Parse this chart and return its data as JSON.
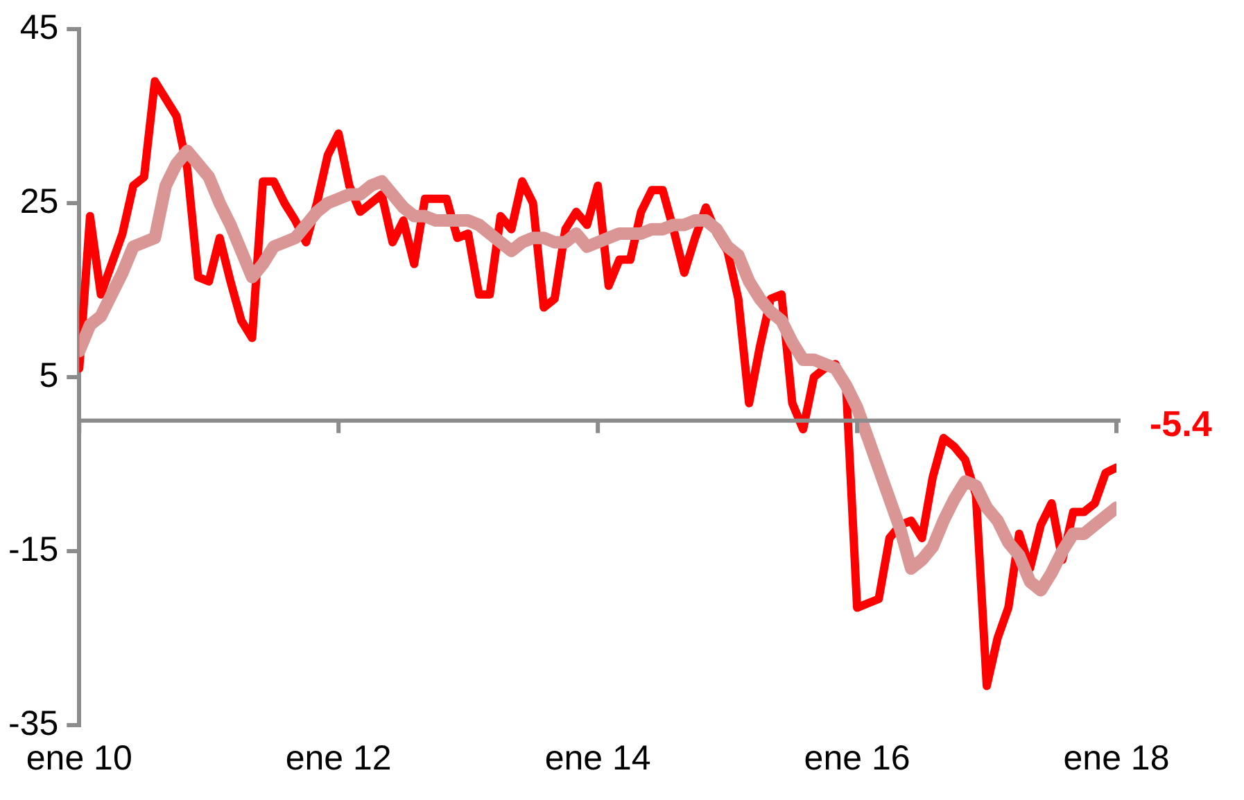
{
  "chart_data": {
    "type": "line",
    "x": [
      "2010-01",
      "2010-02",
      "2010-03",
      "2010-04",
      "2010-05",
      "2010-06",
      "2010-07",
      "2010-08",
      "2010-09",
      "2010-10",
      "2010-11",
      "2010-12",
      "2011-01",
      "2011-02",
      "2011-03",
      "2011-04",
      "2011-05",
      "2011-06",
      "2011-07",
      "2011-08",
      "2011-09",
      "2011-10",
      "2011-11",
      "2011-12",
      "2012-01",
      "2012-02",
      "2012-03",
      "2012-04",
      "2012-05",
      "2012-06",
      "2012-07",
      "2012-08",
      "2012-09",
      "2012-10",
      "2012-11",
      "2012-12",
      "2013-01",
      "2013-02",
      "2013-03",
      "2013-04",
      "2013-05",
      "2013-06",
      "2013-07",
      "2013-08",
      "2013-09",
      "2013-10",
      "2013-11",
      "2013-12",
      "2014-01",
      "2014-02",
      "2014-03",
      "2014-04",
      "2014-05",
      "2014-06",
      "2014-07",
      "2014-08",
      "2014-09",
      "2014-10",
      "2014-11",
      "2014-12",
      "2015-01",
      "2015-02",
      "2015-03",
      "2015-04",
      "2015-05",
      "2015-06",
      "2015-07",
      "2015-08",
      "2015-09",
      "2015-10",
      "2015-11",
      "2015-12",
      "2016-01",
      "2016-02",
      "2016-03",
      "2016-04",
      "2016-05",
      "2016-06",
      "2016-07",
      "2016-08",
      "2016-09",
      "2016-10",
      "2016-11",
      "2016-12",
      "2017-01",
      "2017-02",
      "2017-03",
      "2017-04",
      "2017-05",
      "2017-06",
      "2017-07",
      "2017-08",
      "2017-09",
      "2017-10",
      "2017-11",
      "2017-12",
      "2018-01"
    ],
    "series": [
      {
        "color": "#ff0000",
        "values": [
          6,
          23.5,
          14.5,
          18,
          21.5,
          27,
          28,
          39,
          37,
          35,
          29,
          16.5,
          16,
          21,
          16,
          11.5,
          9.5,
          27.5,
          27.5,
          25,
          23,
          20.5,
          25,
          30.5,
          33,
          27,
          24,
          25,
          26,
          20.5,
          23,
          18,
          25.5,
          25.5,
          25.5,
          21,
          21.5,
          14.5,
          14.5,
          23.5,
          22,
          27.5,
          25,
          13,
          14,
          22,
          24,
          22.5,
          27,
          15.5,
          18.5,
          18.5,
          24,
          26.5,
          26.5,
          22,
          17,
          21,
          24.5,
          21.5,
          19.5,
          14,
          2,
          8.5,
          14,
          14.5,
          2,
          -1,
          5,
          6,
          6.5,
          3.5,
          -21.5,
          -21,
          -20.5,
          -13.5,
          -12,
          -11.5,
          -13.5,
          -6.5,
          -2,
          -3,
          -4.5,
          -8.5,
          -30.5,
          -25,
          -21.5,
          -13,
          -17,
          -12,
          -9.5,
          -16,
          -10.5,
          -10.5,
          -9.5,
          -6,
          -5.4
        ]
      },
      {
        "color": "#d99694",
        "values": [
          8,
          11,
          12,
          14.5,
          17,
          20,
          20.5,
          21,
          27,
          29.5,
          31,
          29.5,
          28,
          25,
          22.5,
          19.5,
          16.5,
          18,
          20,
          20.5,
          21,
          22.5,
          24,
          25,
          25.5,
          26,
          26,
          27,
          27.5,
          26,
          24.5,
          23.5,
          23.5,
          23,
          23,
          23,
          23,
          22.5,
          21.5,
          20.5,
          19.5,
          20.5,
          21,
          21,
          20.5,
          20.5,
          21.5,
          20,
          20.5,
          21,
          21.5,
          21.5,
          21.5,
          22,
          22,
          22.5,
          22.5,
          23,
          23,
          22,
          20,
          19,
          16,
          14,
          12.5,
          11.5,
          9,
          7,
          7,
          6.5,
          6,
          4,
          1.5,
          -2,
          -5.5,
          -9,
          -12.5,
          -17,
          -16,
          -14.5,
          -11.5,
          -9,
          -7,
          -7.5,
          -10,
          -11.5,
          -14,
          -15.5,
          -18.5,
          -19.5,
          -17.5,
          -15,
          -13,
          -13,
          -12,
          -11,
          -10
        ]
      }
    ],
    "xlim": [
      "2010-01",
      "2018-01"
    ],
    "xticks": [
      {
        "value": "2010-01",
        "label": "ene 10"
      },
      {
        "value": "2012-01",
        "label": "ene 12"
      },
      {
        "value": "2014-01",
        "label": "ene 14"
      },
      {
        "value": "2016-01",
        "label": "ene 16"
      },
      {
        "value": "2018-01",
        "label": "ene 18"
      }
    ],
    "ylim": [
      -35,
      45
    ],
    "yticks": [
      -35,
      -15,
      5,
      25,
      45
    ],
    "annotations": [
      {
        "text": "-5.4",
        "x": "2018-01",
        "y": -5.4
      }
    ],
    "grid": false,
    "legend": false,
    "marker": "none",
    "line_style": "solid"
  }
}
